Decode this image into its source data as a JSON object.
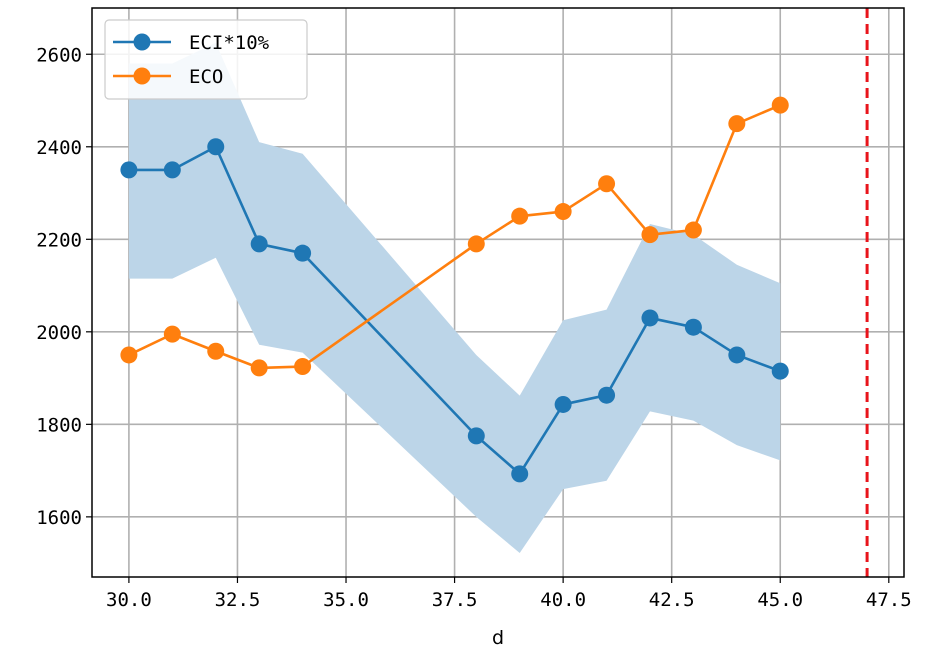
{
  "chart_data": {
    "type": "line",
    "xlabel": "d",
    "ylabel": "",
    "xlim": [
      29.15,
      47.85
    ],
    "ylim": [
      1470,
      2700
    ],
    "xticks": [
      30.0,
      32.5,
      35.0,
      37.5,
      40.0,
      42.5,
      45.0,
      47.5
    ],
    "xtick_labels": [
      "30.0",
      "32.5",
      "35.0",
      "37.5",
      "40.0",
      "42.5",
      "45.0",
      "47.5"
    ],
    "yticks": [
      1600,
      1800,
      2000,
      2200,
      2400,
      2600
    ],
    "ytick_labels": [
      "1600",
      "1800",
      "2000",
      "2200",
      "2400",
      "2600"
    ],
    "grid": true,
    "legend_position": "top-left",
    "series": [
      {
        "name": "ECI*10%",
        "color": "#1f77b4",
        "marker": "circle",
        "x": [
          30,
          31,
          32,
          33,
          34,
          38,
          39,
          40,
          41,
          42,
          43,
          44,
          45
        ],
        "y": [
          2350,
          2350,
          2400,
          2190,
          2170,
          1775,
          1693,
          1843,
          1863,
          2030,
          2010,
          1950,
          1915
        ],
        "band_upper": [
          2580,
          2580,
          2625,
          2410,
          2385,
          1950,
          1862,
          2025,
          2048,
          2233,
          2210,
          2145,
          2105
        ],
        "band_lower": [
          2115,
          2115,
          2160,
          1972,
          1955,
          1600,
          1522,
          1660,
          1678,
          1828,
          1808,
          1755,
          1722
        ],
        "band_color": "#bcd5e8"
      },
      {
        "name": "ECO",
        "color": "#ff7f0e",
        "marker": "circle",
        "x": [
          30,
          31,
          32,
          33,
          34,
          38,
          39,
          40,
          41,
          42,
          43,
          44,
          45
        ],
        "y": [
          1950,
          1995,
          1958,
          1922,
          1925,
          2190,
          2250,
          2260,
          2320,
          2210,
          2220,
          2450,
          2490
        ]
      }
    ],
    "vline": {
      "x": 47,
      "color": "#e8141b",
      "style": "dashed"
    }
  }
}
